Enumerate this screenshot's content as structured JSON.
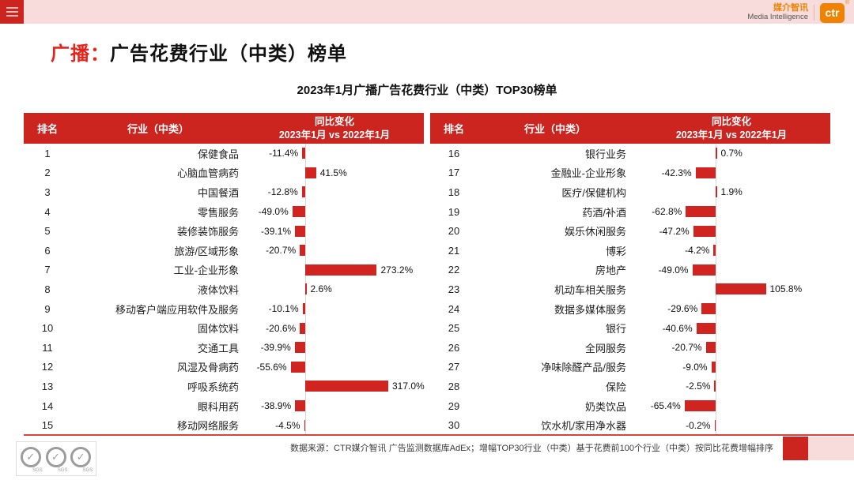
{
  "colors": {
    "brand_red": "#cc241f",
    "bar_red": "#cf241f",
    "title_red": "#e8231a",
    "pink": "#f8dcdc",
    "orange": "#ef8200"
  },
  "topbar": {
    "menu_icon": "hamburger-icon"
  },
  "brand": {
    "cn": "媒介智讯",
    "en": "Media Intelligence",
    "logo_text": "ctr",
    "reg_mark": "®"
  },
  "page_title": {
    "highlight": "广播：",
    "rest": "广告花费行业（中类）榜单"
  },
  "subtitle": "2023年1月广播广告花费行业（中类）TOP30榜单",
  "table_header": {
    "rank": "排名",
    "industry": "行业（中类）",
    "change_line1": "同比变化",
    "change_line2": "2023年1月 vs 2022年1月"
  },
  "chart_data": {
    "type": "bar",
    "orientation": "horizontal",
    "title": "2023年1月广播广告花费行业（中类）TOP30榜单",
    "value_unit": "%",
    "value_axis_label": "同比变化 2023年1月 vs 2022年1月",
    "legend": "none",
    "rows": [
      {
        "rank": 1,
        "industry": "保健食品",
        "value": -11.4,
        "label": "-11.4%"
      },
      {
        "rank": 2,
        "industry": "心脑血管病药",
        "value": 41.5,
        "label": "41.5%"
      },
      {
        "rank": 3,
        "industry": "中国餐酒",
        "value": -12.8,
        "label": "-12.8%"
      },
      {
        "rank": 4,
        "industry": "零售服务",
        "value": -49.0,
        "label": "-49.0%"
      },
      {
        "rank": 5,
        "industry": "装修装饰服务",
        "value": -39.1,
        "label": "-39.1%"
      },
      {
        "rank": 6,
        "industry": "旅游/区域形象",
        "value": -20.7,
        "label": "-20.7%"
      },
      {
        "rank": 7,
        "industry": "工业-企业形象",
        "value": 273.2,
        "label": "273.2%"
      },
      {
        "rank": 8,
        "industry": "液体饮料",
        "value": 2.6,
        "label": "2.6%"
      },
      {
        "rank": 9,
        "industry": "移动客户端应用软件及服务",
        "value": -10.1,
        "label": "-10.1%"
      },
      {
        "rank": 10,
        "industry": "固体饮料",
        "value": -20.6,
        "label": "-20.6%"
      },
      {
        "rank": 11,
        "industry": "交通工具",
        "value": -39.9,
        "label": "-39.9%"
      },
      {
        "rank": 12,
        "industry": "风湿及骨病药",
        "value": -55.6,
        "label": "-55.6%"
      },
      {
        "rank": 13,
        "industry": "呼吸系统药",
        "value": 317.0,
        "label": "317.0%"
      },
      {
        "rank": 14,
        "industry": "眼科用药",
        "value": -38.9,
        "label": "-38.9%"
      },
      {
        "rank": 15,
        "industry": "移动网络服务",
        "value": -4.5,
        "label": "-4.5%"
      },
      {
        "rank": 16,
        "industry": "银行业务",
        "value": 0.7,
        "label": "0.7%"
      },
      {
        "rank": 17,
        "industry": "金融业-企业形象",
        "value": -42.3,
        "label": "-42.3%"
      },
      {
        "rank": 18,
        "industry": "医疗/保健机构",
        "value": 1.9,
        "label": "1.9%"
      },
      {
        "rank": 19,
        "industry": "药酒/补酒",
        "value": -62.8,
        "label": "-62.8%"
      },
      {
        "rank": 20,
        "industry": "娱乐休闲服务",
        "value": -47.2,
        "label": "-47.2%"
      },
      {
        "rank": 21,
        "industry": "博彩",
        "value": -4.2,
        "label": "-4.2%"
      },
      {
        "rank": 22,
        "industry": "房地产",
        "value": -49.0,
        "label": "-49.0%"
      },
      {
        "rank": 23,
        "industry": "机动车相关服务",
        "value": 105.8,
        "label": "105.8%"
      },
      {
        "rank": 24,
        "industry": "数据多媒体服务",
        "value": -29.6,
        "label": "-29.6%"
      },
      {
        "rank": 25,
        "industry": "银行",
        "value": -40.6,
        "label": "-40.6%"
      },
      {
        "rank": 26,
        "industry": "全网服务",
        "value": -20.7,
        "label": "-20.7%"
      },
      {
        "rank": 27,
        "industry": "净味除醛产品/服务",
        "value": -9.0,
        "label": "-9.0%"
      },
      {
        "rank": 28,
        "industry": "保险",
        "value": -2.5,
        "label": "-2.5%"
      },
      {
        "rank": 29,
        "industry": "奶类饮品",
        "value": -65.4,
        "label": "-65.4%"
      },
      {
        "rank": 30,
        "industry": "饮水机/家用净水器",
        "value": -0.2,
        "label": "-0.2%"
      }
    ]
  },
  "footer": {
    "source": "数据来源：CTR媒介智讯 广告监测数据库AdEx；增幅TOP30行业（中类）基于花费前100个行业（中类）按同比花费增幅排序",
    "sgs_label": "SGS"
  }
}
